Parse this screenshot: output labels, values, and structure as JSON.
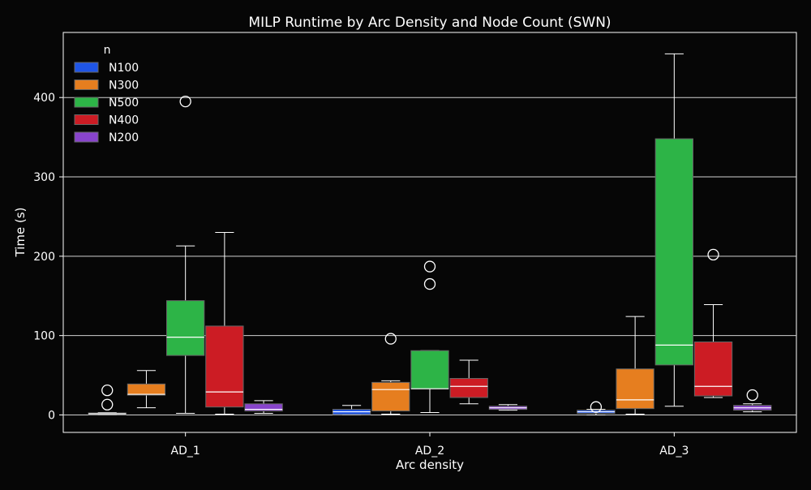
{
  "chart_data": {
    "type": "box",
    "title": "MILP Runtime by Arc Density and Node Count (SWN)",
    "xlabel": "Arc density",
    "ylabel": "Time (s)",
    "categories": [
      "AD_1",
      "AD_2",
      "AD_3"
    ],
    "ylim": [
      -22,
      482
    ],
    "yticks": [
      0,
      100,
      200,
      300,
      400
    ],
    "grid": "horizontal",
    "legend": {
      "title": "n",
      "placement": "top-left"
    },
    "series": [
      {
        "name": "N100",
        "color": "#1f55e6",
        "boxes": [
          {
            "whislo": 0,
            "q1": 0.5,
            "med": 1.5,
            "q3": 2.5,
            "whishi": 3,
            "fliers": [
              31,
              13
            ]
          },
          {
            "whislo": 0,
            "q1": 0.5,
            "med": 4,
            "q3": 7,
            "whishi": 12,
            "fliers": []
          },
          {
            "whislo": 0,
            "q1": 2,
            "med": 4,
            "q3": 6,
            "whishi": 7,
            "fliers": [
              10
            ]
          }
        ]
      },
      {
        "name": "N300",
        "color": "#e67e1f",
        "boxes": [
          {
            "whislo": 9,
            "q1": 25,
            "med": 26,
            "q3": 39,
            "whishi": 56,
            "fliers": []
          },
          {
            "whislo": 1,
            "q1": 5,
            "med": 32,
            "q3": 41,
            "whishi": 43,
            "fliers": [
              96
            ]
          },
          {
            "whislo": 1,
            "q1": 8,
            "med": 19,
            "q3": 58,
            "whishi": 124,
            "fliers": []
          }
        ]
      },
      {
        "name": "N500",
        "color": "#2db447",
        "boxes": [
          {
            "whislo": 2,
            "q1": 75,
            "med": 98,
            "q3": 144,
            "whishi": 213,
            "fliers": [
              395
            ]
          },
          {
            "whislo": 3,
            "q1": 33,
            "med": 33,
            "q3": 81,
            "whishi": 81,
            "fliers": [
              187,
              165
            ]
          },
          {
            "whislo": 11,
            "q1": 63,
            "med": 88,
            "q3": 348,
            "whishi": 455,
            "fliers": []
          }
        ]
      },
      {
        "name": "N400",
        "color": "#cc1c24",
        "boxes": [
          {
            "whislo": 1,
            "q1": 10,
            "med": 29,
            "q3": 112,
            "whishi": 230,
            "fliers": []
          },
          {
            "whislo": 14,
            "q1": 22,
            "med": 36,
            "q3": 46,
            "whishi": 69,
            "fliers": []
          },
          {
            "whislo": 22,
            "q1": 24,
            "med": 36,
            "q3": 92,
            "whishi": 139,
            "fliers": [
              202
            ]
          }
        ]
      },
      {
        "name": "N200",
        "color": "#8844cc",
        "boxes": [
          {
            "whislo": 2,
            "q1": 5,
            "med": 7,
            "q3": 14,
            "whishi": 18,
            "fliers": []
          },
          {
            "whislo": 6,
            "q1": 7,
            "med": 9,
            "q3": 11,
            "whishi": 13,
            "fliers": []
          },
          {
            "whislo": 4,
            "q1": 6,
            "med": 9,
            "q3": 12,
            "whishi": 14,
            "fliers": [
              25
            ]
          }
        ]
      }
    ]
  }
}
